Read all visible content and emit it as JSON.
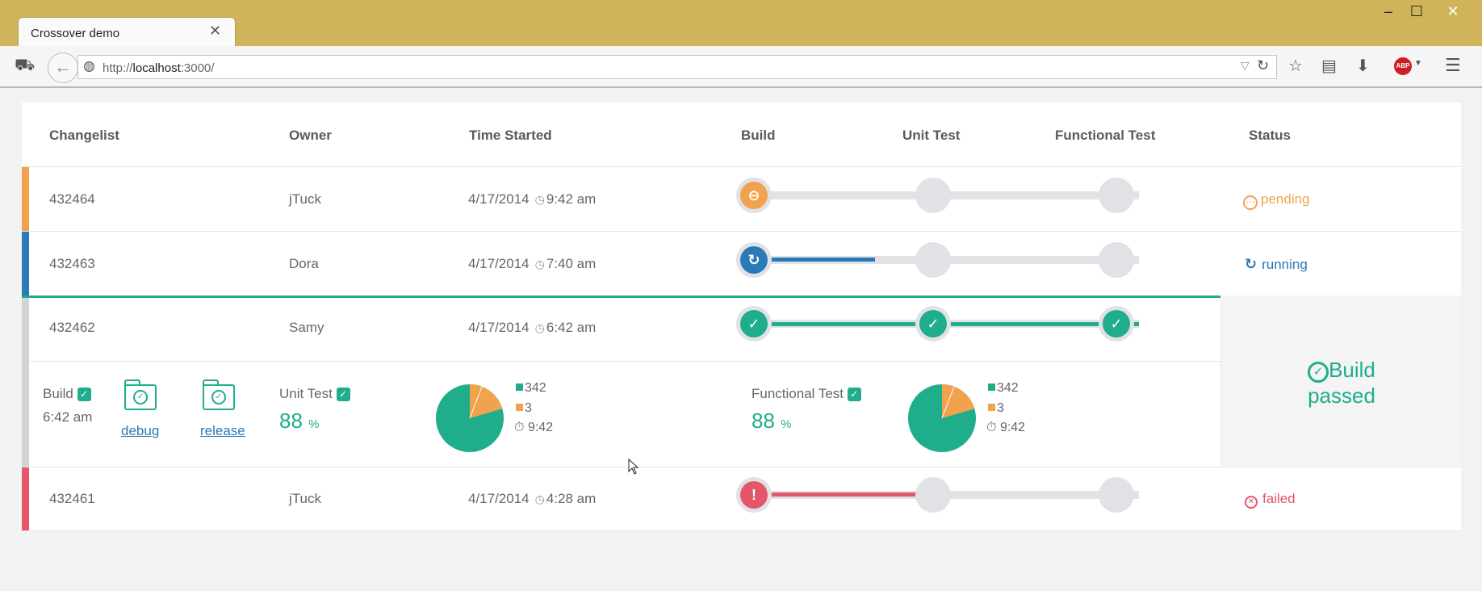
{
  "browser": {
    "tab_title": "Crossover demo",
    "url_prefix": "http://",
    "url_host": "localhost",
    "url_suffix": ":3000/",
    "abp_label": "ABP"
  },
  "table": {
    "headers": {
      "changelist": "Changelist",
      "owner": "Owner",
      "time_started": "Time Started",
      "build": "Build",
      "unit_test": "Unit Test",
      "functional_test": "Functional Test",
      "status": "Status"
    },
    "rows": [
      {
        "changelist": "432464",
        "owner": "jTuck",
        "date": "4/17/2014",
        "time": "9:42 am",
        "status": "pending",
        "status_color": "#f0a24d",
        "stripe": "#f0a24d"
      },
      {
        "changelist": "432463",
        "owner": "Dora",
        "date": "4/17/2014",
        "time": "7:40 am",
        "status": "running",
        "status_color": "#2a7ab8",
        "stripe": "#2a7ab8"
      },
      {
        "changelist": "432462",
        "owner": "Samy",
        "date": "4/17/2014",
        "time": "6:42 am",
        "status": "Build passed",
        "status_color": "#1fad8c",
        "stripe": "#d3d3d3"
      },
      {
        "changelist": "432461",
        "owner": "jTuck",
        "date": "4/17/2014",
        "time": "4:28 am",
        "status": "failed",
        "status_color": "#e5566a",
        "stripe": "#e5566a"
      }
    ]
  },
  "details": {
    "build_label": "Build",
    "build_time": "6:42 am",
    "debug_link": "debug",
    "release_link": "release",
    "unit_test": {
      "label": "Unit Test",
      "percent": "88",
      "percent_sign": "%",
      "passed": "342",
      "failed": "3",
      "duration": "9:42"
    },
    "functional_test": {
      "label": "Functional Test",
      "percent": "88",
      "percent_sign": "%",
      "passed": "342",
      "failed": "3",
      "duration": "9:42"
    },
    "passed_line1": "Build",
    "passed_line2": "passed"
  },
  "colors": {
    "pending": "#f0a24d",
    "running": "#2a7ab8",
    "passed": "#1fad8c",
    "failed": "#e5566a"
  }
}
